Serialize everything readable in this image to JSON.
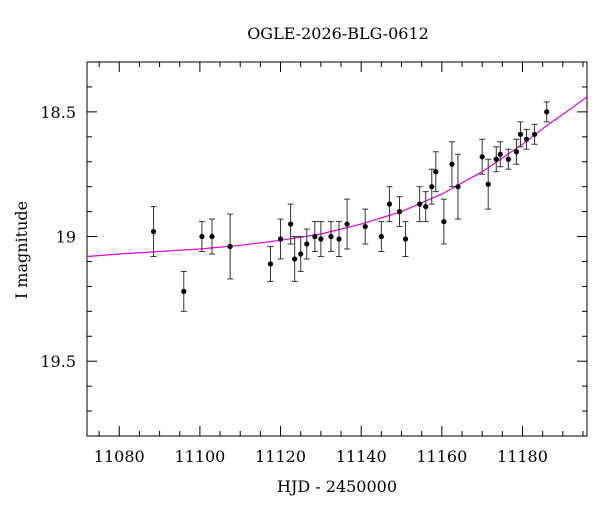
{
  "chart_data": {
    "type": "scatter",
    "title": "OGLE-2026-BLG-0612",
    "xlabel": "HJD - 2450000",
    "ylabel": "I magnitude",
    "xlim": [
      11072,
      11196
    ],
    "ylim": [
      19.8,
      18.3
    ],
    "y_inverted": true,
    "x_ticks": [
      11080,
      11100,
      11120,
      11140,
      11160,
      11180
    ],
    "y_ticks": [
      18.5,
      19,
      19.5
    ],
    "y_tick_labels": [
      "18.5",
      "19",
      "19.5"
    ],
    "x_minor_step": 5,
    "y_minor_step": 0.1,
    "grid": false,
    "colors": {
      "points": "#000000",
      "model": "#e000e0"
    },
    "series": [
      {
        "kind": "points",
        "points": [
          {
            "x": 11088.5,
            "y": 18.98,
            "err": 0.1
          },
          {
            "x": 11096.0,
            "y": 19.22,
            "err": 0.08
          },
          {
            "x": 11100.5,
            "y": 19.0,
            "err": 0.06
          },
          {
            "x": 11103.0,
            "y": 19.0,
            "err": 0.07
          },
          {
            "x": 11107.5,
            "y": 19.04,
            "err": 0.13
          },
          {
            "x": 11117.5,
            "y": 19.11,
            "err": 0.07
          },
          {
            "x": 11120.0,
            "y": 19.01,
            "err": 0.08
          },
          {
            "x": 11122.5,
            "y": 18.95,
            "err": 0.08
          },
          {
            "x": 11123.5,
            "y": 19.09,
            "err": 0.09
          },
          {
            "x": 11125.0,
            "y": 19.07,
            "err": 0.07
          },
          {
            "x": 11126.5,
            "y": 19.03,
            "err": 0.06
          },
          {
            "x": 11128.5,
            "y": 19.0,
            "err": 0.06
          },
          {
            "x": 11130.0,
            "y": 19.01,
            "err": 0.07
          },
          {
            "x": 11132.5,
            "y": 19.0,
            "err": 0.06
          },
          {
            "x": 11134.5,
            "y": 19.01,
            "err": 0.07
          },
          {
            "x": 11136.5,
            "y": 18.95,
            "err": 0.1
          },
          {
            "x": 11141.0,
            "y": 18.96,
            "err": 0.07
          },
          {
            "x": 11145.0,
            "y": 19.0,
            "err": 0.06
          },
          {
            "x": 11147.0,
            "y": 18.87,
            "err": 0.07
          },
          {
            "x": 11149.5,
            "y": 18.9,
            "err": 0.06
          },
          {
            "x": 11151.0,
            "y": 19.01,
            "err": 0.07
          },
          {
            "x": 11154.5,
            "y": 18.87,
            "err": 0.07
          },
          {
            "x": 11156.0,
            "y": 18.88,
            "err": 0.06
          },
          {
            "x": 11157.5,
            "y": 18.8,
            "err": 0.07
          },
          {
            "x": 11158.5,
            "y": 18.74,
            "err": 0.08
          },
          {
            "x": 11160.5,
            "y": 18.94,
            "err": 0.09
          },
          {
            "x": 11162.5,
            "y": 18.71,
            "err": 0.09
          },
          {
            "x": 11164.0,
            "y": 18.8,
            "err": 0.13
          },
          {
            "x": 11170.0,
            "y": 18.68,
            "err": 0.07
          },
          {
            "x": 11171.5,
            "y": 18.79,
            "err": 0.1
          },
          {
            "x": 11173.5,
            "y": 18.69,
            "err": 0.05
          },
          {
            "x": 11174.5,
            "y": 18.67,
            "err": 0.05
          },
          {
            "x": 11176.5,
            "y": 18.69,
            "err": 0.04
          },
          {
            "x": 11178.5,
            "y": 18.66,
            "err": 0.05
          },
          {
            "x": 11179.5,
            "y": 18.59,
            "err": 0.05
          },
          {
            "x": 11181.0,
            "y": 18.61,
            "err": 0.04
          },
          {
            "x": 11183.0,
            "y": 18.59,
            "err": 0.04
          },
          {
            "x": 11186.0,
            "y": 18.5,
            "err": 0.04
          }
        ]
      },
      {
        "kind": "model",
        "x": [
          11072,
          11080,
          11090,
          11100,
          11110,
          11120,
          11130,
          11140,
          11150,
          11160,
          11170,
          11180,
          11186,
          11190,
          11196
        ],
        "y": [
          19.08,
          19.07,
          19.06,
          19.05,
          19.035,
          19.015,
          18.99,
          18.95,
          18.9,
          18.83,
          18.74,
          18.63,
          18.555,
          18.51,
          18.44
        ]
      }
    ]
  }
}
